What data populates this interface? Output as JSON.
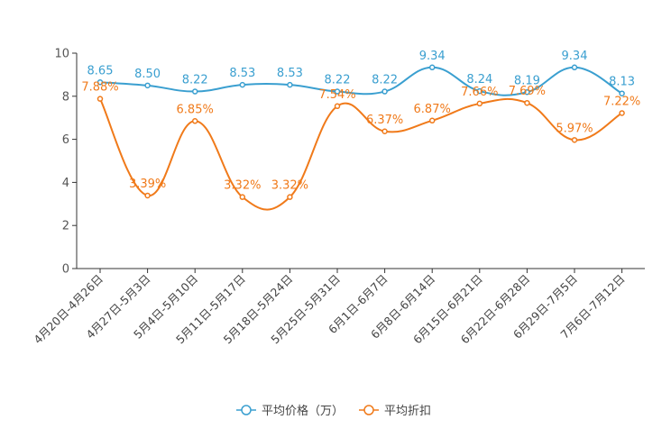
{
  "chart_data": {
    "type": "line",
    "categories": [
      "4月20日-4月26日",
      "4月27日-5月3日",
      "5月4日-5月10日",
      "5月11日-5月17日",
      "5月18日-5月24日",
      "5月25日-5月31日",
      "6月1日-6月7日",
      "6月8日-6月14日",
      "6月15日-6月21日",
      "6月22日-6月28日",
      "6月29日-7月5日",
      "7月6日-7月12日"
    ],
    "ylim": [
      0,
      10
    ],
    "yticks": [
      0,
      2,
      4,
      6,
      8,
      10
    ],
    "ytick_labels": [
      "0",
      "2",
      "4",
      "6",
      "8",
      "10"
    ],
    "legend_position": "bottom-center",
    "series": [
      {
        "name": "平均价格（万）",
        "color": "#3a9fd0",
        "values": [
          8.65,
          8.5,
          8.22,
          8.53,
          8.53,
          8.22,
          8.22,
          9.34,
          8.24,
          8.19,
          9.34,
          8.13
        ],
        "labels": [
          "8.65",
          "8.50",
          "8.22",
          "8.53",
          "8.53",
          "8.22",
          "8.22",
          "9.34",
          "8.24",
          "8.19",
          "9.34",
          "8.13"
        ]
      },
      {
        "name": "平均折扣",
        "color": "#f07a1a",
        "values": [
          7.88,
          3.39,
          6.85,
          3.32,
          3.32,
          7.54,
          6.37,
          6.87,
          7.66,
          7.69,
          5.97,
          7.22
        ],
        "labels": [
          "7.88%",
          "3.39%",
          "6.85%",
          "3.32%",
          "3.32%",
          "7.54%",
          "6.37%",
          "6.87%",
          "7.66%",
          "7.69%",
          "5.97%",
          "7.22%"
        ]
      }
    ]
  }
}
